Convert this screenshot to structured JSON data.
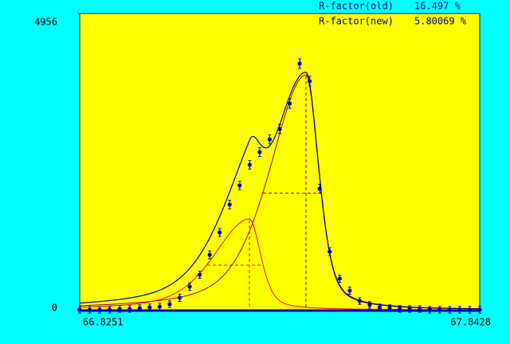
{
  "chart_data": {
    "type": "scatter",
    "r_factor": [
      {
        "label": "R-factor(old)",
        "value": "16.497 %"
      },
      {
        "label": "R-factor(new)",
        "value": "5.80069 %"
      }
    ],
    "xlim": [
      66.8251,
      67.8428
    ],
    "ylim": [
      0,
      4956
    ],
    "xticks": [
      66.8251,
      67.8428
    ],
    "yticks": [
      0,
      4956
    ],
    "x": [
      66.8251,
      66.8505,
      66.876,
      66.9014,
      66.9269,
      66.9523,
      66.9778,
      67.0032,
      67.0286,
      67.0541,
      67.0795,
      67.105,
      67.1304,
      67.1559,
      67.1813,
      67.2067,
      67.2322,
      67.2576,
      67.2831,
      67.3085,
      67.334,
      67.3594,
      67.3848,
      67.4103,
      67.4357,
      67.4612,
      67.4866,
      67.5121,
      67.5375,
      67.5629,
      67.5884,
      67.6138,
      67.6393,
      67.6647,
      67.6902,
      67.7156,
      67.741,
      67.7665,
      67.7919,
      67.8174,
      67.8428
    ],
    "values": [
      13,
      13,
      13,
      13,
      27,
      27,
      40,
      53,
      66,
      106,
      213,
      399,
      598,
      930,
      1302,
      1768,
      2087,
      2432,
      2645,
      2857,
      3030,
      3455,
      4120,
      3827,
      2033,
      983,
      532,
      332,
      159,
      93,
      53,
      40,
      27,
      27,
      27,
      13,
      13,
      13,
      13,
      13,
      13
    ],
    "errors": [
      55,
      55,
      55,
      55,
      55,
      55,
      55,
      55,
      55,
      55,
      60,
      60,
      60,
      65,
      65,
      70,
      70,
      70,
      75,
      75,
      75,
      80,
      80,
      80,
      75,
      65,
      60,
      60,
      55,
      55,
      55,
      55,
      55,
      55,
      55,
      55,
      55,
      55,
      55,
      55,
      55
    ],
    "color": "#0000c8",
    "fit_color": "#000080",
    "peaks": [
      {
        "center": 67.2569,
        "height": 1515,
        "left": 67.1495,
        "right": 67.2914,
        "color": "#ff0000"
      },
      {
        "center": 67.4009,
        "height": 3920,
        "left": 67.2914,
        "right": 67.4394,
        "color": "#a00000"
      }
    ],
    "background": 13
  }
}
